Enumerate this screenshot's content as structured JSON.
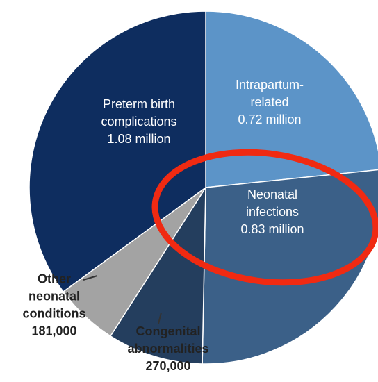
{
  "chart_data": {
    "type": "pie",
    "categories": [
      "Intrapartum-\nrelated",
      "Neonatal\ninfections",
      "Congenital\nabnormalities",
      "Other\nneonatal\nconditions",
      "Preterm birth\ncomplications"
    ],
    "values": [
      720000,
      830000,
      270000,
      181000,
      1080000
    ],
    "value_labels": [
      "0.72 million",
      "0.83 million",
      "270,000",
      "181,000",
      "1.08 million"
    ],
    "colors": [
      "#5c94c8",
      "#3b6088",
      "#243e5e",
      "#a3a3a3",
      "#0e2d5f"
    ]
  }
}
